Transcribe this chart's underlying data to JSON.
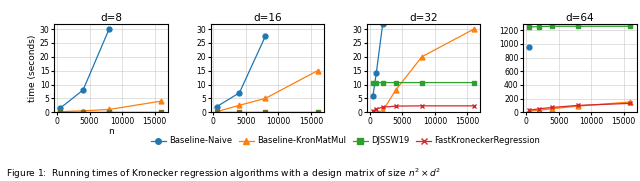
{
  "panels": [
    {
      "title": "d=8",
      "n_values": [
        500,
        4000,
        8000,
        16000
      ],
      "baseline_naive": [
        1.5,
        8.0,
        30.0,
        null
      ],
      "baseline_kronmatmul": [
        0.2,
        0.5,
        1.0,
        4.0
      ],
      "djssw19": [
        0.1,
        0.1,
        0.1,
        0.1
      ],
      "fastkronecker": [
        0.05,
        0.05,
        0.05,
        0.05
      ],
      "ylim": [
        0,
        32
      ],
      "yticks": [
        0,
        5,
        10,
        15,
        20,
        25,
        30
      ]
    },
    {
      "title": "d=16",
      "n_values": [
        500,
        4000,
        8000,
        16000
      ],
      "baseline_naive": [
        2.0,
        7.0,
        27.5,
        null
      ],
      "baseline_kronmatmul": [
        0.2,
        2.5,
        5.0,
        15.0
      ],
      "djssw19": [
        0.1,
        0.1,
        0.1,
        0.1
      ],
      "fastkronecker": [
        0.05,
        0.05,
        0.05,
        0.05
      ],
      "ylim": [
        0,
        32
      ],
      "yticks": [
        0,
        5,
        10,
        15,
        20,
        25,
        30
      ]
    },
    {
      "title": "d=32",
      "n_values": [
        500,
        1000,
        2000,
        4000,
        8000,
        16000
      ],
      "baseline_naive": [
        6.0,
        14.0,
        32.0,
        null,
        null,
        null
      ],
      "baseline_kronmatmul": [
        0.05,
        0.1,
        0.5,
        8.0,
        20.0,
        30.0
      ],
      "djssw19": [
        10.5,
        10.6,
        10.7,
        10.7,
        10.7,
        10.7
      ],
      "fastkronecker": [
        0.5,
        1.2,
        1.8,
        2.2,
        2.3,
        2.3
      ],
      "ylim": [
        0,
        32
      ],
      "yticks": [
        0,
        5,
        10,
        15,
        20,
        25,
        30
      ]
    },
    {
      "title": "d=64",
      "n_values": [
        500,
        2000,
        4000,
        8000,
        16000
      ],
      "baseline_naive": [
        950.0,
        null,
        null,
        null,
        null
      ],
      "baseline_kronmatmul": [
        15.0,
        30.0,
        50.0,
        90.0,
        150.0
      ],
      "djssw19": [
        1250.0,
        1255.0,
        1260.0,
        1260.0,
        1260.0
      ],
      "fastkronecker": [
        30.0,
        50.0,
        70.0,
        100.0,
        130.0
      ],
      "ylim": [
        0,
        1300
      ],
      "yticks": [
        0,
        200,
        400,
        600,
        800,
        1000,
        1200
      ]
    }
  ],
  "colors": {
    "baseline_naive": "#1f77b4",
    "baseline_kronmatmul": "#ff7f0e",
    "djssw19": "#2ca02c",
    "fastkronecker": "#d62728"
  },
  "markers": {
    "baseline_naive": "o",
    "baseline_kronmatmul": "^",
    "djssw19": "s",
    "fastkronecker": "x"
  },
  "legend_labels": [
    "Baseline-Naive",
    "Baseline-KronMatMul",
    "DJSSW19",
    "FastKroneckerRegression"
  ],
  "ylabel": "time (seconds)",
  "xlabel": "n",
  "caption": "Figure 1:  Running times of Kronecker regression algorithms with a design matrix of size $n^2 \\times d^2$"
}
